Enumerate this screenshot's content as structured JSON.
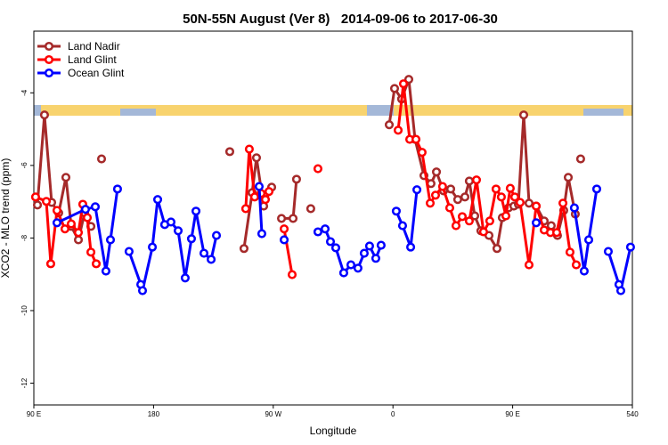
{
  "chart_data": {
    "type": "line",
    "title": "50N-55N August (Ver 8)   2014-09-06 to 2017-06-30",
    "xlabel": "Longitude",
    "ylabel": "XCO2 - MLO trend (ppm)",
    "xlim": [
      90,
      540
    ],
    "ylim": [
      -12.6,
      -2.3
    ],
    "xticks": [
      {
        "value": 90,
        "label": "90 E"
      },
      180,
      {
        "value": 270,
        "label": "90 W"
      },
      {
        "value": 360,
        "label": "0"
      },
      {
        "value": 450,
        "label": "90 E"
      },
      540
    ],
    "yticks": [
      -4,
      -6,
      -8,
      -10,
      -12
    ],
    "legend": "top-left",
    "series": [
      {
        "name": "Land Nadir",
        "color": "#a52a2a",
        "x": [
          92.7,
          98.0,
          103.4,
          108.7,
          114.1,
          118.1,
          123.5,
          128.2,
          132.9,
          null,
          140.9,
          null,
          237.3,
          null,
          248.0,
          254.1,
          257.4,
          262.8,
          268.8,
          null,
          276.2,
          284.9,
          287.5,
          null,
          298.2,
          null,
          357.2,
          361.2,
          366.5,
          371.9,
          376.6,
          383.3,
          388.6,
          392.7,
          398.0,
          403.4,
          408.7,
          414.1,
          417.4,
          421.5,
          426.1,
          432.2,
          438.2,
          442.2,
          446.9,
          450.9,
          454.3,
          458.3,
          462.3,
          467.7,
          473.7,
          479.0,
          483.7,
          488.4,
          491.8,
          497.1,
          null,
          501.1
        ],
        "values": [
          -7.09,
          -4.61,
          -7.02,
          -7.31,
          -6.33,
          -7.68,
          -8.05,
          -7.31,
          -7.68,
          null,
          -5.82,
          null,
          -5.62,
          null,
          -8.29,
          -6.75,
          -5.79,
          -7.12,
          -6.6,
          null,
          -7.46,
          -7.46,
          -6.38,
          null,
          -7.19,
          null,
          -4.88,
          -3.88,
          -4.17,
          -3.63,
          -5.28,
          -6.28,
          -6.5,
          -6.18,
          -6.7,
          -6.65,
          -6.94,
          -6.87,
          -6.43,
          -7.39,
          -7.8,
          -7.93,
          -8.29,
          -7.44,
          -7.17,
          -7.12,
          -7.07,
          -4.61,
          -7.04,
          -7.12,
          -7.53,
          -7.66,
          -7.93,
          -7.24,
          -6.33,
          -7.34,
          null,
          -5.82
        ]
      },
      {
        "name": "Land Glint",
        "color": "#ff0000",
        "x": [
          91.3,
          99.4,
          102.7,
          107.4,
          113.4,
          118.1,
          123.5,
          126.8,
          130.2,
          132.9,
          136.9,
          null,
          249.3,
          252.0,
          256.0,
          260.8,
          264.1,
          266.8,
          null,
          278.2,
          284.2,
          null,
          303.6,
          null,
          363.9,
          367.9,
          372.6,
          377.3,
          381.9,
          388.0,
          392.0,
          397.3,
          402.7,
          407.4,
          412.1,
          417.4,
          422.8,
          428.1,
          432.8,
          437.5,
          441.5,
          444.9,
          448.2,
          451.6,
          455.6,
          462.3,
          467.7,
          473.7,
          478.4,
          483.1,
          487.8,
          493.1,
          497.8
        ],
        "values": [
          -6.87,
          -6.99,
          -8.71,
          -7.24,
          -7.75,
          -7.61,
          -7.85,
          -7.07,
          -7.44,
          -8.39,
          -8.71,
          null,
          -7.19,
          -5.55,
          -6.87,
          -6.77,
          -6.94,
          -6.72,
          null,
          -7.75,
          -9.01,
          null,
          -6.09,
          null,
          -5.03,
          -3.75,
          -5.28,
          -5.28,
          -5.64,
          -7.04,
          -6.82,
          -6.58,
          -7.17,
          -7.66,
          -7.41,
          -7.53,
          -6.4,
          -7.83,
          -7.53,
          -6.65,
          -6.87,
          -7.39,
          -6.63,
          -6.87,
          -7.02,
          -8.74,
          -7.12,
          -7.78,
          -7.85,
          -7.85,
          -7.04,
          -8.39,
          -8.74
        ]
      },
      {
        "name": "Ocean Glint",
        "color": "#0000ff",
        "x": [
          107.4,
          128.8,
          136.2,
          144.2,
          147.6,
          152.9,
          null,
          161.6,
          170.4,
          171.7,
          179.1,
          183.1,
          188.4,
          193.1,
          198.5,
          203.8,
          208.5,
          211.9,
          217.9,
          223.3,
          227.3,
          null,
          259.4,
          261.4,
          null,
          278.2,
          null,
          303.6,
          309.0,
          313.0,
          317.0,
          323.0,
          328.4,
          333.7,
          338.4,
          342.4,
          347.1,
          351.1,
          null,
          362.5,
          367.2,
          373.3,
          378.0,
          null,
          467.7,
          null,
          496.4,
          503.8,
          507.2,
          513.2,
          null,
          521.9,
          529.9,
          531.3,
          538.6
        ],
        "values": [
          -7.58,
          -7.21,
          -7.14,
          -8.91,
          -8.05,
          -6.65,
          null,
          -8.37,
          -9.28,
          -9.45,
          -8.25,
          -6.94,
          -7.63,
          -7.56,
          -7.8,
          -9.1,
          -8.02,
          -7.26,
          -8.42,
          -8.59,
          -7.93,
          null,
          -6.58,
          -7.88,
          null,
          -8.05,
          null,
          -7.83,
          -7.75,
          -8.1,
          -8.27,
          -8.96,
          -8.74,
          -8.83,
          -8.42,
          -8.22,
          -8.56,
          -8.2,
          null,
          -7.26,
          -7.66,
          -8.25,
          -6.67,
          null,
          -7.58,
          null,
          -7.17,
          -8.91,
          -8.05,
          -6.65,
          null,
          -8.37,
          -9.28,
          -9.45,
          -8.25
        ]
      }
    ]
  }
}
